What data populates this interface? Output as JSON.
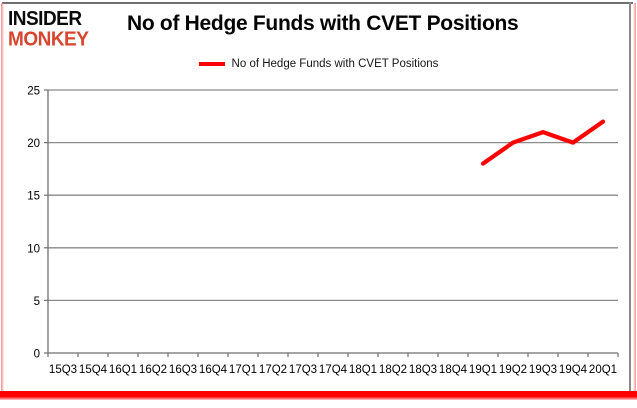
{
  "logo": {
    "line1": "INSIDER",
    "line2": "MONKEY"
  },
  "header": {
    "title": "No of Hedge Funds with CVET Positions"
  },
  "legend": {
    "label": "No of Hedge Funds with CVET Positions"
  },
  "colors": {
    "line": "#ff0000",
    "logo_red": "#d6462e",
    "gridline": "#8a8a8a",
    "axis": "#6f6f6f",
    "text": "#000000",
    "frame_red": "#ff0000"
  },
  "chart_data": {
    "type": "line",
    "title": "No of Hedge Funds with CVET Positions",
    "categories": [
      "15Q3",
      "15Q4",
      "16Q1",
      "16Q2",
      "16Q3",
      "16Q4",
      "17Q1",
      "17Q2",
      "17Q3",
      "17Q4",
      "18Q1",
      "18Q2",
      "18Q3",
      "18Q4",
      "19Q1",
      "19Q2",
      "19Q3",
      "19Q4",
      "20Q1"
    ],
    "series": [
      {
        "name": "No of Hedge Funds with CVET Positions",
        "color": "#ff0000",
        "values": [
          null,
          null,
          null,
          null,
          null,
          null,
          null,
          null,
          null,
          null,
          null,
          null,
          null,
          null,
          18,
          20,
          21,
          20,
          22
        ]
      }
    ],
    "xlabel": "",
    "ylabel": "",
    "ylim": [
      0,
      25
    ],
    "yticks": [
      0,
      5,
      10,
      15,
      20,
      25
    ],
    "grid": true,
    "legend_position": "top-center"
  }
}
